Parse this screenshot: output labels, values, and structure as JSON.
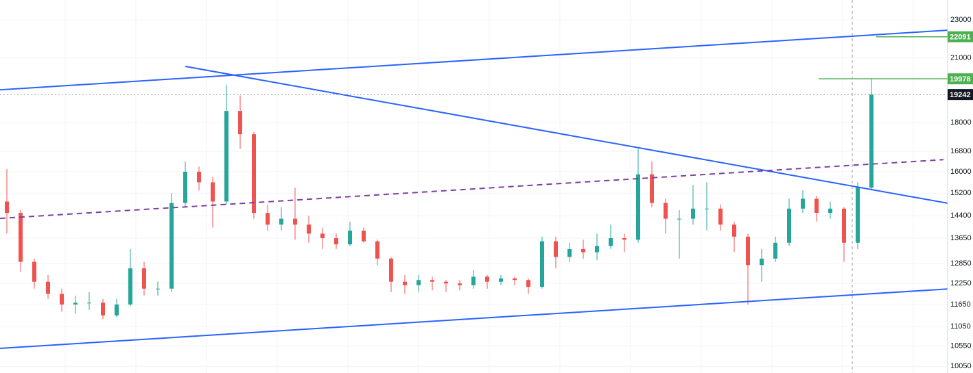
{
  "chart_data": {
    "type": "candlestick",
    "log_scale": true,
    "grid": true,
    "up_color": "#26a69a",
    "down_color": "#ef5350",
    "xlim": [
      -0.5,
      68.55
    ],
    "ylim": [
      9890,
      24120
    ],
    "yticks": [
      23000,
      21000,
      18000,
      16800,
      16000,
      15200,
      14400,
      13650,
      12850,
      12250,
      11650,
      11050,
      10550,
      10050
    ],
    "open": [
      14900,
      14500,
      12900,
      12300,
      11950,
      11650,
      11700,
      11700,
      11350,
      11650,
      12700,
      12100,
      12100,
      14850,
      16000,
      15600,
      14900,
      18500,
      17500,
      14500,
      14100,
      14300,
      14100,
      13800,
      13650,
      13450,
      13900,
      13550,
      13000,
      12300,
      12200,
      12350,
      12300,
      12250,
      12200,
      12450,
      12300,
      12400,
      12350,
      12150,
      13550,
      13050,
      13300,
      13200,
      13400,
      13650,
      13600,
      15900,
      14850,
      14300,
      14300,
      14650,
      14650,
      14100,
      13700,
      12800,
      13000,
      13500,
      14650,
      15000,
      14500,
      14650,
      13500,
      15400
    ],
    "high": [
      16100,
      14600,
      13000,
      12500,
      12100,
      11900,
      12000,
      11800,
      11800,
      13300,
      12900,
      12300,
      15200,
      16400,
      16200,
      15800,
      19700,
      19200,
      17600,
      14800,
      14700,
      15400,
      14400,
      14000,
      13800,
      14200,
      14000,
      13600,
      13050,
      12500,
      12500,
      12450,
      12350,
      12350,
      12650,
      12500,
      12500,
      12450,
      12400,
      13700,
      13700,
      13500,
      13600,
      13800,
      14100,
      13800,
      16900,
      16400,
      15000,
      14600,
      15500,
      15600,
      14800,
      14200,
      13800,
      13300,
      13700,
      15000,
      15300,
      15100,
      14900,
      14700,
      15600,
      19978
    ],
    "low": [
      13800,
      12600,
      12100,
      11800,
      11450,
      11400,
      11500,
      11250,
      11300,
      11600,
      11900,
      11900,
      12000,
      14700,
      15300,
      14000,
      14800,
      16900,
      14300,
      13900,
      13900,
      13600,
      13500,
      13300,
      13300,
      13400,
      13500,
      12800,
      12000,
      11950,
      12000,
      12050,
      12000,
      12050,
      12100,
      12100,
      12200,
      12200,
      11950,
      12100,
      12700,
      12900,
      13000,
      12950,
      13300,
      13200,
      13500,
      14700,
      13800,
      13000,
      14100,
      13900,
      13900,
      13200,
      11650,
      12300,
      12900,
      13400,
      14500,
      14200,
      14300,
      12900,
      13300,
      15300
    ],
    "close": [
      14500,
      12900,
      12300,
      11950,
      11650,
      11700,
      11700,
      11350,
      11650,
      12700,
      12100,
      12100,
      14850,
      16000,
      15600,
      14900,
      18500,
      17500,
      14500,
      14100,
      14300,
      14100,
      13800,
      13650,
      13450,
      13900,
      13550,
      13000,
      12300,
      12200,
      12350,
      12300,
      12250,
      12200,
      12450,
      12300,
      12400,
      12350,
      12150,
      13550,
      13050,
      13300,
      13200,
      13400,
      13650,
      13600,
      15900,
      14850,
      14300,
      14300,
      14650,
      14650,
      14100,
      13700,
      12800,
      13000,
      13500,
      14650,
      15000,
      14500,
      14650,
      13500,
      15400,
      19242
    ],
    "trend_lines": [
      {
        "points": [
          [
            -0.5,
            19460
          ],
          [
            68.55,
            22440
          ]
        ],
        "color": "#2962ff",
        "dashed": false
      },
      {
        "points": [
          [
            13,
            20580
          ],
          [
            68.55,
            14840
          ]
        ],
        "color": "#2962ff",
        "dashed": false
      },
      {
        "points": [
          [
            -0.5,
            10490
          ],
          [
            68.55,
            12090
          ]
        ],
        "color": "#2962ff",
        "dashed": false
      },
      {
        "points": [
          [
            -0.5,
            14310
          ],
          [
            68.25,
            16470
          ]
        ],
        "color": "#7b3fa0",
        "dashed": true
      }
    ],
    "levels": [
      {
        "value": 22091,
        "start": 63.35,
        "color": "#4caf50"
      },
      {
        "value": 19978,
        "start": 59.15,
        "color": "#4caf50"
      }
    ],
    "last_price": {
      "value": 19242,
      "color": "#131722"
    }
  }
}
